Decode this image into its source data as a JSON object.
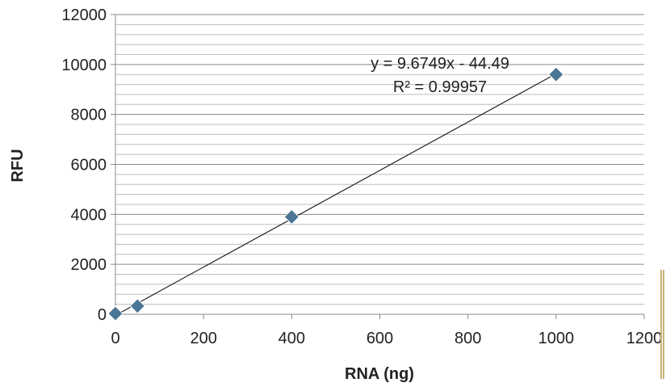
{
  "chart_data": {
    "type": "scatter",
    "title": "",
    "xlabel": "RNA (ng)",
    "ylabel": "RFU",
    "xlim": [
      0,
      1200
    ],
    "ylim": [
      0,
      12000
    ],
    "xticks": [
      "0",
      "200",
      "400",
      "600",
      "800",
      "1000",
      "1200"
    ],
    "yticks": [
      "0",
      "2000",
      "4000",
      "6000",
      "8000",
      "10000",
      "12000"
    ],
    "grid": "horizontal major and minor",
    "series": [
      {
        "x": [
          0,
          50,
          400,
          1000
        ],
        "y": [
          30,
          330,
          3900,
          9600
        ],
        "color": "#4a7594"
      }
    ],
    "trendline": {
      "type": "linear",
      "slope": 9.6749,
      "intercept": -44.49,
      "color": "#222222"
    },
    "annotations": [
      "y = 9.6749x - 44.49",
      "R² = 0.99957"
    ]
  }
}
